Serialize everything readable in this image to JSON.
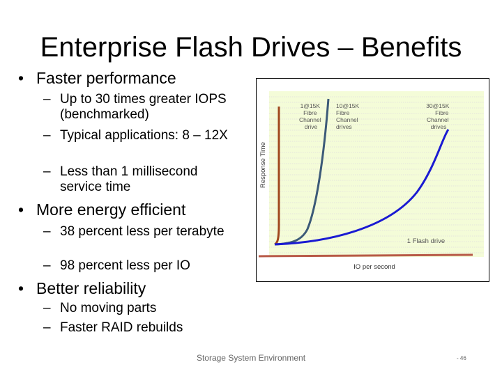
{
  "slide": {
    "title": "Enterprise Flash Drives – Benefits",
    "footer": "Storage System Environment",
    "page_number": "- 46"
  },
  "bullets": [
    {
      "text": "Faster performance",
      "subs": [
        "Up to 30 times greater IOPS (benchmarked)",
        "Typical applications: 8 – 12X",
        "Less than 1 millisecond service time"
      ]
    },
    {
      "text": "More energy efficient",
      "subs": [
        "38 percent less per terabyte",
        "98 percent less per IO"
      ]
    },
    {
      "text": "Better reliability",
      "subs": [
        "No moving parts",
        "Faster RAID rebuilds"
      ]
    }
  ],
  "chart_data": {
    "type": "line",
    "xlabel": "IO per second",
    "ylabel": "Response Time",
    "series": [
      {
        "name": "1@15K Fibre Channel drive",
        "label_lines": [
          "1@15K",
          "Fibre",
          "Channel",
          "drive"
        ],
        "color": "#a0471d"
      },
      {
        "name": "10@15K Fibre Channel drives",
        "label_lines": [
          "10@15K",
          "Fibre",
          "Channel",
          "drives"
        ],
        "color": "#3c5a78"
      },
      {
        "name": "30@15K Fibre Channel drives",
        "label_lines": [
          "30@15K",
          "Fibre",
          "Channel",
          "drives"
        ],
        "color": "#1a1ad2"
      },
      {
        "name": "1 Flash drive",
        "label_lines": [
          "1 Flash drive"
        ],
        "color": "#b85a48"
      }
    ],
    "colors": {
      "plot_bg": "#f4fcd8",
      "grid": "#dddddd",
      "border": "#000000"
    }
  }
}
